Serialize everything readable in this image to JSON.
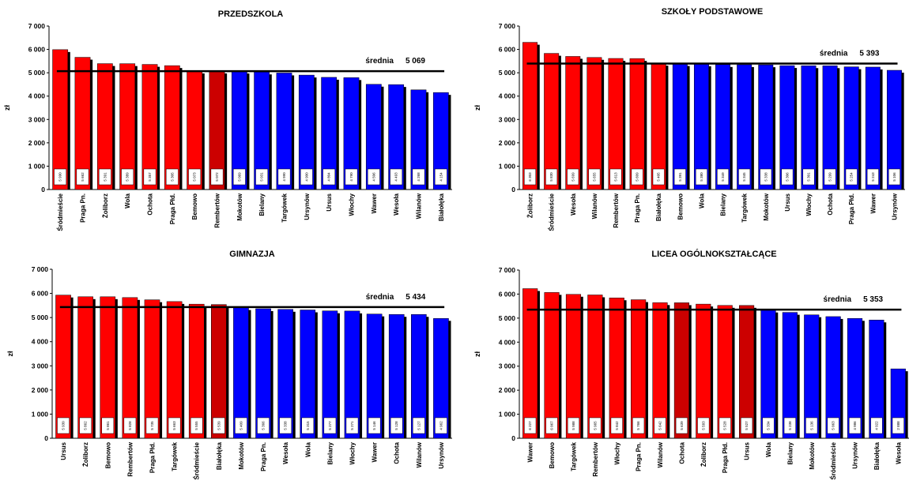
{
  "colors": {
    "above": "#ff0000",
    "below": "#0000ff",
    "highlight": "#cc0000",
    "mean_line": "#000000",
    "shadow": "#000000"
  },
  "chart_data": [
    {
      "type": "bar",
      "title": "PRZEDSZKOLA",
      "ylabel": "zł",
      "ylim": [
        0,
        7000
      ],
      "yticks": [
        "0",
        "1 000",
        "2 000",
        "3 000",
        "4 000",
        "5 000",
        "6 000",
        "7 000"
      ],
      "grid": false,
      "mean_label": "średnia",
      "mean_value_label": "5 069",
      "mean": 5069,
      "categories": [
        "Śródmieście",
        "Praga Pn.",
        "Żoliborz",
        "Wola",
        "Ochota",
        "Praga Płd.",
        "Bemowo",
        "Rembertów",
        "Mokotów",
        "Bielany",
        "Targówek",
        "Ursynów",
        "Ursus",
        "Włochy",
        "Wawer",
        "Wesoła",
        "Wilanów",
        "Białołęka"
      ],
      "values": [
        5990,
        5662,
        5391,
        5389,
        5357,
        5305,
        5073,
        5072,
        5069,
        5031,
        4990,
        4900,
        4804,
        4790,
        4506,
        4493,
        4268,
        4154
      ],
      "value_labels": [
        "5 990",
        "5 662",
        "5 391",
        "5 389",
        "5 357",
        "5 305",
        "5 073",
        "5 072",
        "5 069",
        "5 031",
        "4 990",
        "4 900",
        "4 804",
        "4 790",
        "4 506",
        "4 493",
        "4 268",
        "4 154"
      ],
      "colors": [
        "above",
        "above",
        "above",
        "above",
        "above",
        "above",
        "above",
        "highlight",
        "below",
        "below",
        "below",
        "below",
        "below",
        "below",
        "below",
        "below",
        "below",
        "below"
      ]
    },
    {
      "type": "bar",
      "title": "SZKOŁY PODSTAWOWE",
      "ylabel": "zł",
      "ylim": [
        0,
        7000
      ],
      "yticks": [
        "0",
        "1 000",
        "2 000",
        "3 000",
        "4 000",
        "5 000",
        "6 000",
        "7 000"
      ],
      "grid": false,
      "mean_label": "średnia",
      "mean_value_label": "5 393",
      "mean": 5393,
      "categories": [
        "Żoliborz",
        "Śródmieście",
        "Wesoła",
        "Wilanów",
        "Rembertów",
        "Praga Pn.",
        "Białołęka",
        "Bemowo",
        "Wola",
        "Bielany",
        "Targówek",
        "Mokotów",
        "Ursus",
        "Włochy",
        "Ochota",
        "Praga Płd.",
        "Wawer",
        "Ursynów"
      ],
      "values": [
        6303,
        5830,
        5699,
        5655,
        5613,
        5609,
        5405,
        5391,
        5380,
        5349,
        5345,
        5338,
        5306,
        5301,
        5299,
        5254,
        5243,
        5106
      ],
      "value_labels": [
        "6 303",
        "5 830",
        "5 699",
        "5 655",
        "5 613",
        "5 609",
        "5 405",
        "5 391",
        "5 380",
        "5 349",
        "5 345",
        "5 338",
        "5 306",
        "5 301",
        "5 299",
        "5 254",
        "5 243",
        "5 106"
      ],
      "colors": [
        "above",
        "above",
        "above",
        "above",
        "above",
        "above",
        "above",
        "below",
        "below",
        "below",
        "below",
        "below",
        "below",
        "below",
        "below",
        "below",
        "below",
        "below"
      ]
    },
    {
      "type": "bar",
      "title": "GIMNAZJA",
      "ylabel": "zł",
      "ylim": [
        0,
        7000
      ],
      "yticks": [
        "0",
        "1 000",
        "2 000",
        "3 000",
        "4 000",
        "5 000",
        "6 000",
        "7 000"
      ],
      "grid": false,
      "mean_label": "średnia",
      "mean_value_label": "5 434",
      "mean": 5434,
      "categories": [
        "Ursus",
        "Żoliborz",
        "Bemowo",
        "Rembertów",
        "Praga Płd.",
        "Targówek",
        "Śródmieście",
        "Białołęka",
        "Mokotów",
        "Praga Pn.",
        "Wesoła",
        "Wola",
        "Bielany",
        "Włochy",
        "Wawer",
        "Ochota",
        "Wilanów",
        "Ursynów"
      ],
      "values": [
        5930,
        5862,
        5861,
        5828,
        5735,
        5663,
        5555,
        5539,
        5409,
        5366,
        5338,
        5315,
        5277,
        5271,
        5146,
        5128,
        5127,
        4962
      ],
      "value_labels": [
        "5 930",
        "5 862",
        "5 861",
        "5 828",
        "5 735",
        "5 663",
        "5 555",
        "5 539",
        "5 409",
        "5 366",
        "5 338",
        "5 315",
        "5 277",
        "5 271",
        "5 146",
        "5 128",
        "5 127",
        "4 962"
      ],
      "colors": [
        "above",
        "above",
        "above",
        "above",
        "above",
        "above",
        "above",
        "highlight",
        "below",
        "below",
        "below",
        "below",
        "below",
        "below",
        "below",
        "below",
        "below",
        "below"
      ]
    },
    {
      "type": "bar",
      "title": "LICEA OGÓLNOKSZTAŁCĄCE",
      "ylabel": "zł",
      "ylim": [
        0,
        7000
      ],
      "yticks": [
        "0",
        "1 000",
        "2 000",
        "3 000",
        "4 000",
        "5 000",
        "6 000",
        "7 000"
      ],
      "grid": false,
      "mean_label": "średnia",
      "mean_value_label": "5 353",
      "mean": 5353,
      "categories": [
        "Wawer",
        "Bemowo",
        "Targówek",
        "Rembertów",
        "Włochy",
        "Praga Pn.",
        "Wilanów",
        "Ochota",
        "Żoliborz",
        "Praga Płd.",
        "Ursus",
        "Wola",
        "Bielany",
        "Mokotów",
        "Śródmieście",
        "Ursynów",
        "Białołęka",
        "Wesoła"
      ],
      "values": [
        6227,
        6067,
        5988,
        5965,
        5842,
        5766,
        5642,
        5639,
        5583,
        5528,
        5527,
        5334,
        5238,
        5136,
        5063,
        4986,
        4922,
        2888
      ],
      "value_labels": [
        "6 227",
        "6 067",
        "5 988",
        "5 965",
        "5 842",
        "5 766",
        "5 642",
        "5 639",
        "5 583",
        "5 528",
        "5 527",
        "5 334",
        "5 238",
        "5 136",
        "5 063",
        "4 986",
        "4 922",
        "2 888"
      ],
      "colors": [
        "above",
        "above",
        "above",
        "above",
        "above",
        "above",
        "above",
        "highlight",
        "above",
        "above",
        "highlight",
        "below",
        "below",
        "below",
        "below",
        "below",
        "below",
        "below"
      ]
    }
  ]
}
